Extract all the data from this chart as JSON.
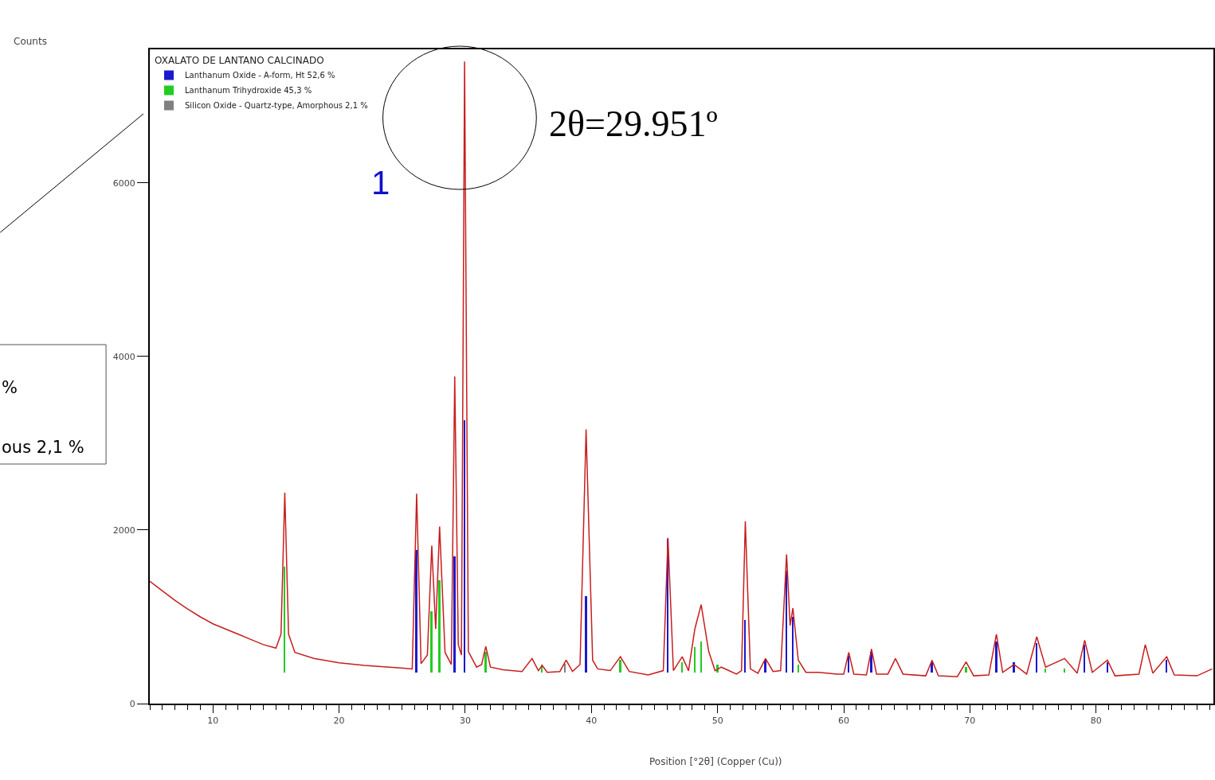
{
  "chart_data": {
    "type": "line",
    "xlabel": "Position [°2θ] (Copper (Cu))",
    "legend_title": "OXALATO DE LANTANO CALCINADO",
    "legend": "top left",
    "xlim": [
      5,
      89.3
    ],
    "ylim": [
      0,
      7540
    ],
    "xticks": [
      10,
      20,
      30,
      40,
      50,
      60,
      70,
      80
    ],
    "yticks": [
      0,
      2000,
      4000,
      6000
    ],
    "series": [
      {
        "color": "#c81e1e",
        "x": [
          5,
          6,
          7,
          8,
          9,
          10,
          11,
          12,
          13,
          14,
          15,
          15.4,
          15.7,
          16.0,
          16.5,
          18,
          20,
          22,
          24,
          25.8,
          26.15,
          26.5,
          27.0,
          27.35,
          27.66,
          27.97,
          28.4,
          28.9,
          29.17,
          29.45,
          29.7,
          29.95,
          30.25,
          30.9,
          31.3,
          31.63,
          32.0,
          33,
          34.5,
          35.3,
          35.8,
          36.1,
          36.5,
          37.5,
          38,
          38.5,
          39.1,
          39.58,
          40.1,
          40.5,
          41.5,
          42.3,
          43,
          44.5,
          45.7,
          46.07,
          46.5,
          47.2,
          47.7,
          48.2,
          48.7,
          49.3,
          49.8,
          50.3,
          51.5,
          51.9,
          52.2,
          52.6,
          53.2,
          53.8,
          54.4,
          55.0,
          55.47,
          55.75,
          55.97,
          56.4,
          57,
          58,
          59.5,
          60.0,
          60.4,
          60.8,
          61.8,
          62.2,
          62.6,
          63.5,
          64.1,
          64.7,
          66.5,
          67,
          67.5,
          69,
          69.7,
          70.3,
          71.5,
          72.1,
          72.6,
          73.5,
          74.5,
          75.3,
          76,
          77.5,
          78.5,
          79.1,
          79.7,
          80.9,
          81.5,
          83.4,
          83.9,
          84.5,
          85.6,
          86.2,
          88,
          89.2
        ],
        "values": [
          1410,
          1300,
          1190,
          1090,
          1000,
          920,
          860,
          800,
          740,
          680,
          640,
          800,
          2430,
          800,
          590,
          520,
          470,
          440,
          420,
          400,
          2420,
          460,
          560,
          1820,
          860,
          2040,
          590,
          450,
          3770,
          680,
          560,
          7400,
          600,
          420,
          450,
          660,
          420,
          390,
          370,
          520,
          380,
          440,
          360,
          370,
          500,
          370,
          450,
          3160,
          500,
          400,
          380,
          540,
          370,
          330,
          380,
          1910,
          380,
          540,
          380,
          860,
          1140,
          600,
          380,
          420,
          340,
          380,
          2100,
          400,
          350,
          520,
          370,
          380,
          1720,
          900,
          1100,
          500,
          360,
          360,
          340,
          340,
          590,
          340,
          330,
          630,
          340,
          340,
          520,
          340,
          320,
          500,
          320,
          310,
          480,
          320,
          330,
          800,
          360,
          450,
          340,
          770,
          420,
          520,
          350,
          730,
          360,
          500,
          320,
          340,
          680,
          350,
          540,
          330,
          320,
          400
        ]
      },
      {
        "type": "bar",
        "name": "Lanthanum Oxide - A-form, Ht 52,6 %",
        "color": "#1a1acc",
        "x": [
          26.15,
          29.17,
          29.95,
          39.58,
          46.07,
          52.2,
          53.8,
          55.47,
          55.97,
          60.4,
          62.2,
          67,
          72.1,
          73.5,
          75.3,
          79.1,
          80.9,
          85.6
        ],
        "base": [
          360,
          360,
          360,
          360,
          360,
          360,
          360,
          360,
          360,
          360,
          360,
          360,
          360,
          360,
          360,
          360,
          360,
          360
        ],
        "values": [
          1410,
          1340,
          2910,
          880,
          1540,
          600,
          140,
          1170,
          640,
          190,
          240,
          120,
          360,
          120,
          340,
          320,
          120,
          140
        ]
      },
      {
        "type": "bar",
        "name": "Lanthanum Trihydroxide 45,3 %",
        "color": "#22cc22",
        "x": [
          15.7,
          27.35,
          27.97,
          31.63,
          36.1,
          42.3,
          47.2,
          48.2,
          48.7,
          50.0,
          56.4,
          69.7,
          76.0,
          77.5
        ],
        "base": [
          360,
          360,
          360,
          360,
          360,
          360,
          360,
          360,
          360,
          360,
          360,
          360,
          360,
          360
        ],
        "values": [
          1220,
          700,
          1060,
          240,
          90,
          140,
          120,
          290,
          360,
          90,
          90,
          60,
          40,
          40
        ]
      },
      {
        "type": "bar",
        "name": "Silicon Oxide - Quartz-type, Amorphous 2,1 %",
        "color": "#808080",
        "x": [
          37.9
        ],
        "base": [
          360
        ],
        "values": [
          100
        ]
      }
    ],
    "annotations": [
      "Counts",
      "2θ=29.951º",
      "1",
      "%",
      "ous 2,1 %"
    ]
  }
}
